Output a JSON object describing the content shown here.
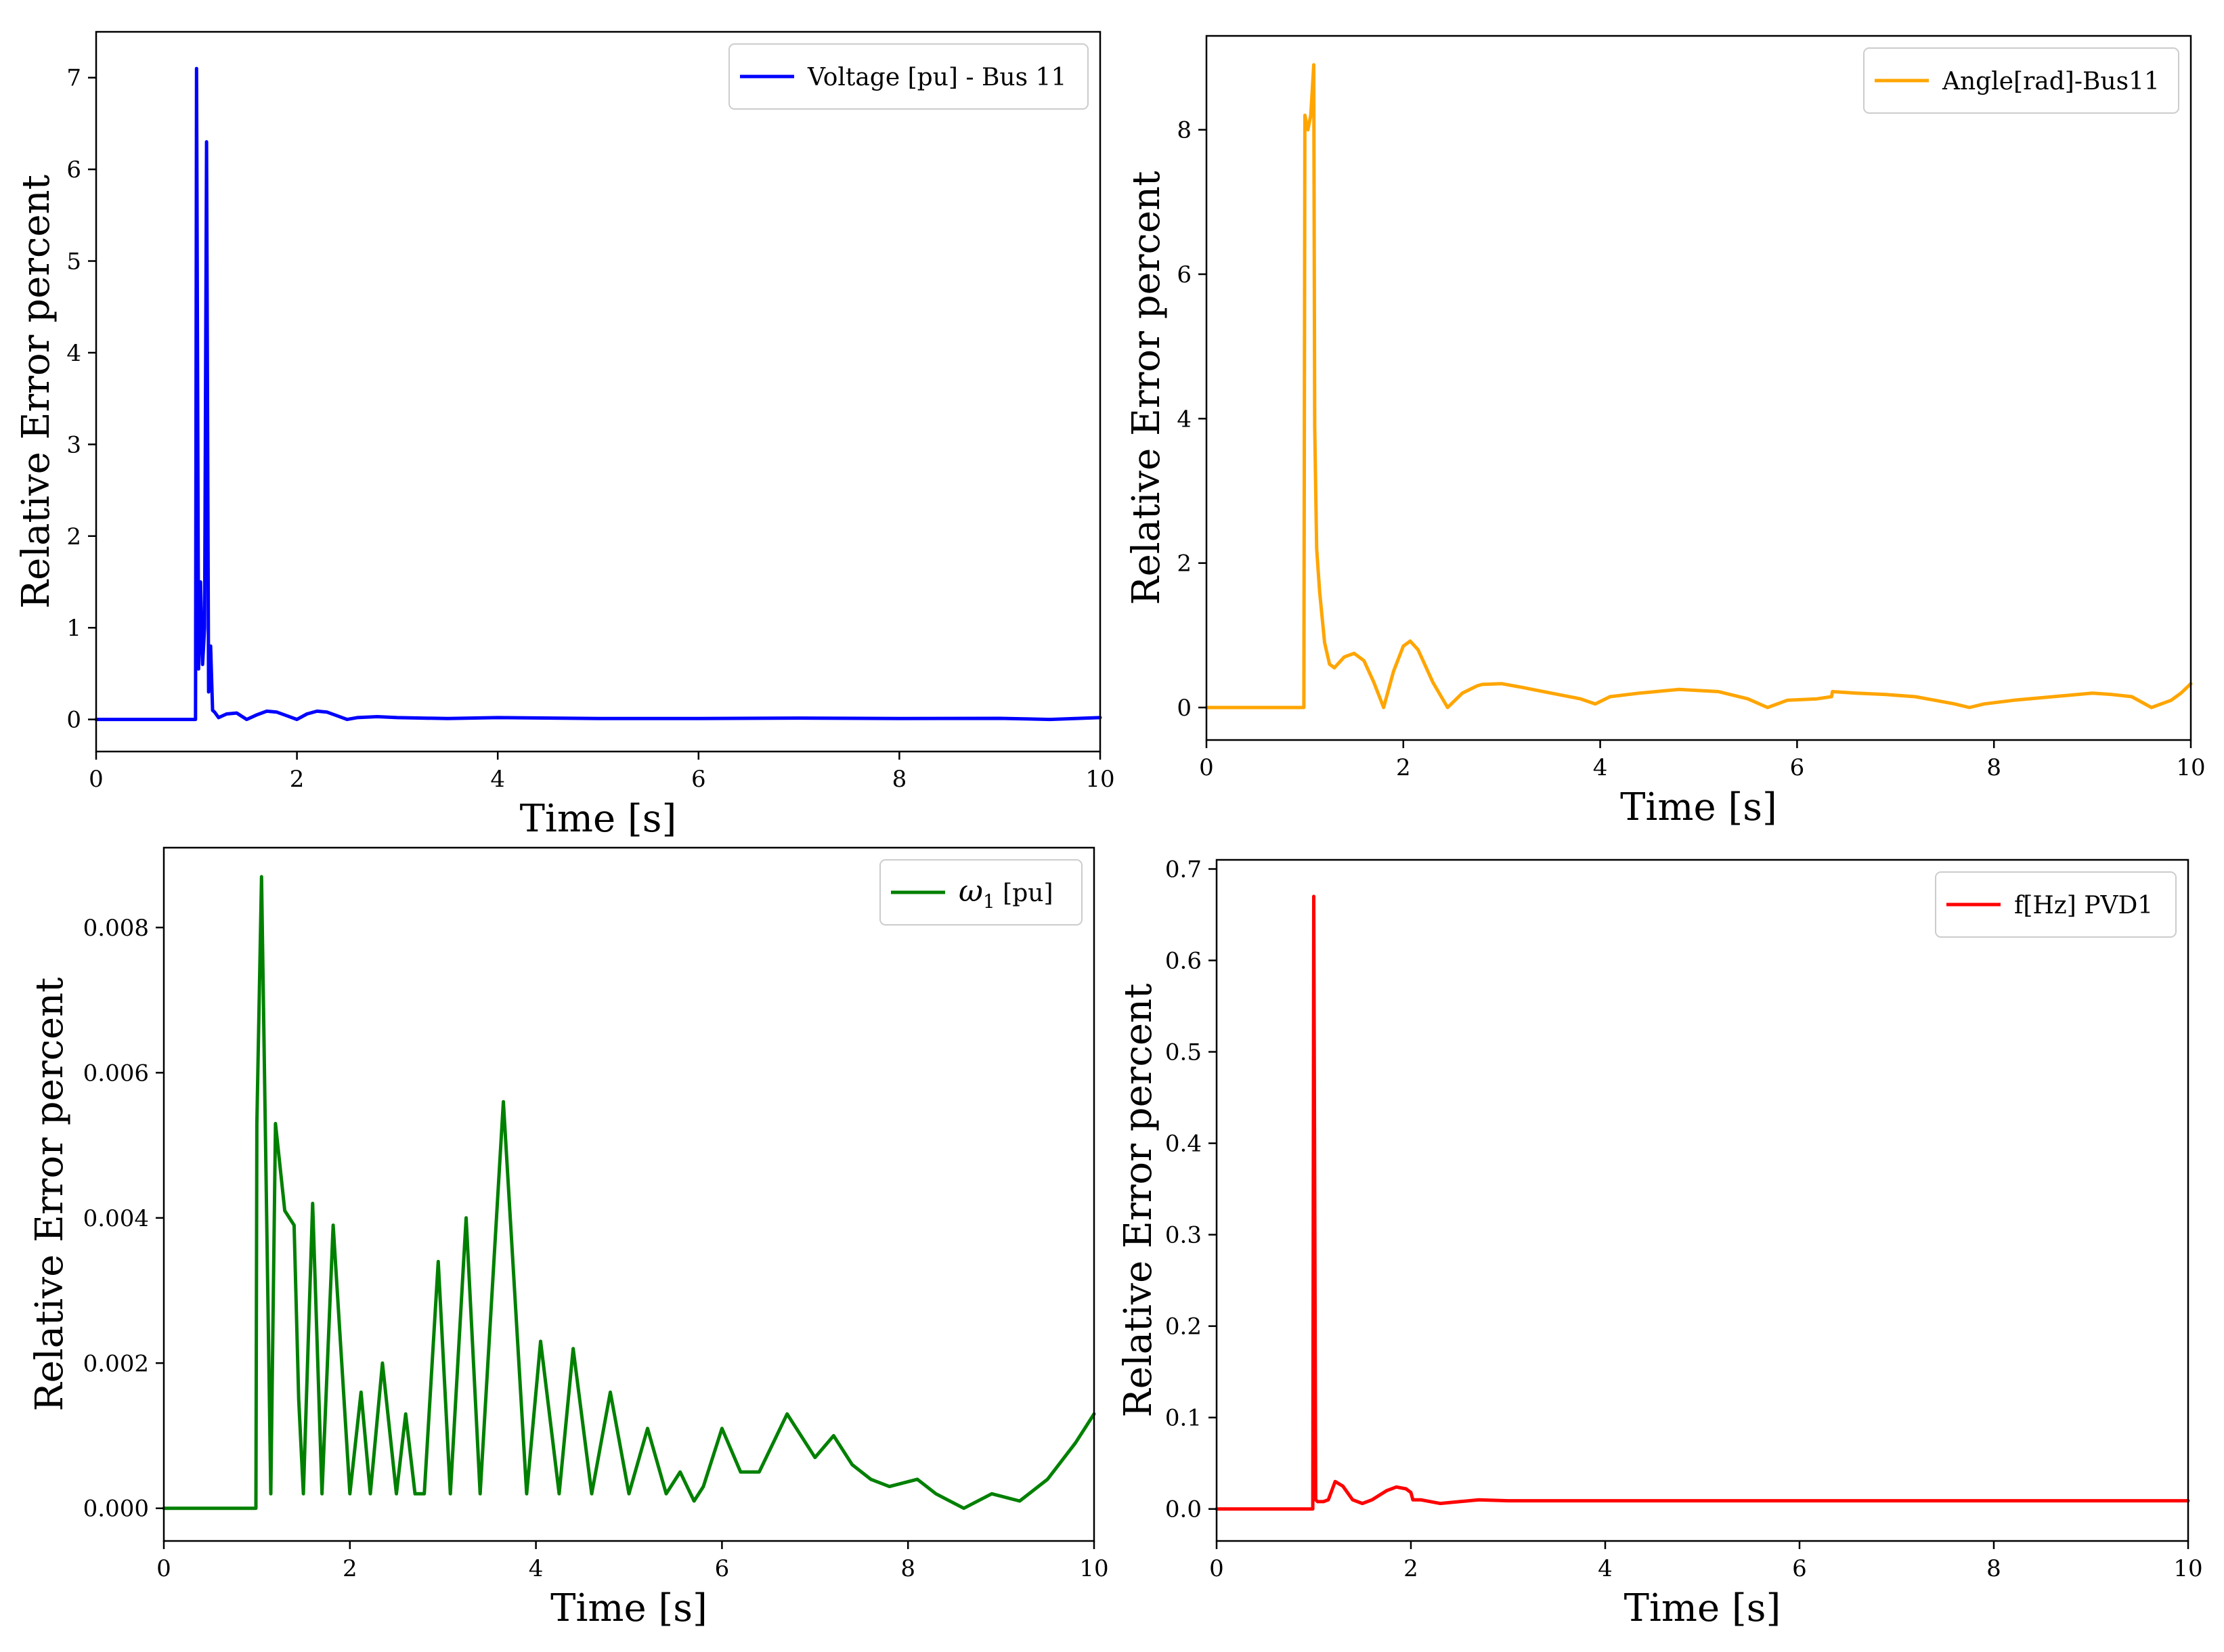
{
  "chart_data": [
    {
      "type": "line",
      "color": "#0000ff",
      "legend": "Voltage [pu] - Bus 11",
      "legend_position": "top-right",
      "xlabel": "Time [s]",
      "ylabel": "Relative Error percent",
      "xlim": [
        0,
        10
      ],
      "ylim": [
        -0.35,
        7.5
      ],
      "xticks": [
        0,
        2,
        4,
        6,
        8,
        10
      ],
      "xtick_labels": [
        "0",
        "2",
        "4",
        "6",
        "8",
        "10"
      ],
      "yticks": [
        0,
        1,
        2,
        3,
        4,
        5,
        6,
        7
      ],
      "ytick_labels": [
        "0",
        "1",
        "2",
        "3",
        "4",
        "5",
        "6",
        "7"
      ],
      "x": [
        0,
        0.99,
        1.0,
        1.02,
        1.04,
        1.06,
        1.08,
        1.1,
        1.12,
        1.14,
        1.16,
        1.18,
        1.22,
        1.3,
        1.4,
        1.5,
        1.6,
        1.7,
        1.8,
        1.9,
        2.0,
        2.1,
        2.2,
        2.3,
        2.4,
        2.5,
        2.6,
        2.8,
        3.0,
        3.5,
        4.0,
        5.0,
        6.0,
        7.0,
        8.0,
        9.0,
        9.5,
        10.0
      ],
      "y": [
        0,
        0,
        7.1,
        0.55,
        1.5,
        0.6,
        1.0,
        6.3,
        0.3,
        0.8,
        0.1,
        0.08,
        0.02,
        0.06,
        0.07,
        0.0,
        0.05,
        0.09,
        0.08,
        0.04,
        0.0,
        0.06,
        0.09,
        0.08,
        0.04,
        0.0,
        0.02,
        0.03,
        0.02,
        0.01,
        0.02,
        0.01,
        0.01,
        0.015,
        0.01,
        0.012,
        0.0,
        0.02
      ]
    },
    {
      "type": "line",
      "color": "#ffa500",
      "legend": "Angle[rad]-Bus11",
      "legend_position": "top-right",
      "xlabel": "Time [s]",
      "ylabel": "Relative Error percent",
      "xlim": [
        0,
        10
      ],
      "ylim": [
        -0.45,
        9.3
      ],
      "xticks": [
        0,
        2,
        4,
        6,
        8,
        10
      ],
      "xtick_labels": [
        "0",
        "2",
        "4",
        "6",
        "8",
        "10"
      ],
      "yticks": [
        0,
        2,
        4,
        6,
        8
      ],
      "ytick_labels": [
        "0",
        "2",
        "4",
        "6",
        "8"
      ],
      "x": [
        0,
        0.99,
        1.0,
        1.03,
        1.06,
        1.09,
        1.1,
        1.11,
        1.12,
        1.15,
        1.2,
        1.25,
        1.3,
        1.4,
        1.5,
        1.6,
        1.7,
        1.8,
        1.9,
        2.0,
        2.07,
        2.15,
        2.3,
        2.45,
        2.6,
        2.75,
        2.8,
        3.0,
        3.2,
        3.5,
        3.8,
        3.95,
        4.1,
        4.4,
        4.8,
        5.2,
        5.5,
        5.7,
        5.9,
        6.2,
        6.35,
        6.36,
        6.6,
        6.9,
        7.2,
        7.4,
        7.6,
        7.75,
        7.9,
        8.2,
        8.6,
        9.0,
        9.2,
        9.4,
        9.6,
        9.8,
        9.9,
        10.0
      ],
      "y": [
        0,
        0,
        8.2,
        8.0,
        8.2,
        8.9,
        3.9,
        3.0,
        2.2,
        1.6,
        0.9,
        0.6,
        0.55,
        0.7,
        0.75,
        0.65,
        0.35,
        0.0,
        0.5,
        0.85,
        0.92,
        0.8,
        0.35,
        0.0,
        0.2,
        0.3,
        0.32,
        0.33,
        0.28,
        0.2,
        0.12,
        0.05,
        0.15,
        0.2,
        0.25,
        0.22,
        0.12,
        0.0,
        0.1,
        0.12,
        0.15,
        0.22,
        0.2,
        0.18,
        0.15,
        0.1,
        0.05,
        0.0,
        0.05,
        0.1,
        0.15,
        0.2,
        0.18,
        0.15,
        0.0,
        0.1,
        0.2,
        0.33
      ]
    },
    {
      "type": "line",
      "color": "#008000",
      "legend": "ω",
      "legend_subscript": "1",
      "legend_suffix": " [pu]",
      "legend_position": "top-right",
      "xlabel": "Time [s]",
      "ylabel": "Relative Error percent",
      "xlim": [
        0,
        10
      ],
      "ylim": [
        -0.00045,
        0.0091
      ],
      "xticks": [
        0,
        2,
        4,
        6,
        8,
        10
      ],
      "xtick_labels": [
        "0",
        "2",
        "4",
        "6",
        "8",
        "10"
      ],
      "yticks": [
        0.0,
        0.002,
        0.004,
        0.006,
        0.008
      ],
      "ytick_labels": [
        "0.000",
        "0.002",
        "0.004",
        "0.006",
        "0.008"
      ],
      "x": [
        0,
        0.99,
        1.0,
        1.05,
        1.1,
        1.15,
        1.2,
        1.3,
        1.4,
        1.45,
        1.5,
        1.6,
        1.7,
        1.82,
        2.0,
        2.12,
        2.22,
        2.35,
        2.5,
        2.6,
        2.7,
        2.8,
        2.95,
        3.08,
        3.25,
        3.4,
        3.65,
        3.9,
        4.05,
        4.25,
        4.4,
        4.6,
        4.8,
        5.0,
        5.2,
        5.4,
        5.55,
        5.7,
        5.8,
        6.0,
        6.2,
        6.4,
        6.7,
        7.0,
        7.2,
        7.4,
        7.6,
        7.8,
        8.1,
        8.3,
        8.6,
        8.9,
        9.2,
        9.5,
        9.8,
        10.0
      ],
      "y": [
        0,
        0,
        0.0053,
        0.0087,
        0.0045,
        0.0002,
        0.0053,
        0.0041,
        0.0039,
        0.0015,
        0.0002,
        0.0042,
        0.0002,
        0.0039,
        0.0002,
        0.0016,
        0.0002,
        0.002,
        0.0002,
        0.0013,
        0.0002,
        0.0002,
        0.0034,
        0.0002,
        0.004,
        0.0002,
        0.0056,
        0.0002,
        0.0023,
        0.0002,
        0.0022,
        0.0002,
        0.0016,
        0.0002,
        0.0011,
        0.0002,
        0.0005,
        0.0001,
        0.0003,
        0.0011,
        0.0005,
        0.0005,
        0.0013,
        0.0007,
        0.001,
        0.0006,
        0.0004,
        0.0003,
        0.0004,
        0.0002,
        0.0,
        0.0002,
        0.0001,
        0.0004,
        0.0009,
        0.0013
      ]
    },
    {
      "type": "line",
      "color": "#ff0000",
      "legend": "f[Hz] PVD1",
      "legend_position": "top-right",
      "xlabel": "Time [s]",
      "ylabel": "Relative Error percent",
      "xlim": [
        0,
        10
      ],
      "ylim": [
        -0.035,
        0.71
      ],
      "xticks": [
        0,
        2,
        4,
        6,
        8,
        10
      ],
      "xtick_labels": [
        "0",
        "2",
        "4",
        "6",
        "8",
        "10"
      ],
      "yticks": [
        0.0,
        0.1,
        0.2,
        0.3,
        0.4,
        0.5,
        0.6,
        0.7
      ],
      "ytick_labels": [
        "0.0",
        "0.1",
        "0.2",
        "0.3",
        "0.4",
        "0.5",
        "0.6",
        "0.7"
      ],
      "x": [
        0,
        0.99,
        1.0,
        1.02,
        1.04,
        1.1,
        1.15,
        1.22,
        1.3,
        1.4,
        1.5,
        1.6,
        1.75,
        1.85,
        1.95,
        2.0,
        2.02,
        2.1,
        2.3,
        2.5,
        2.7,
        3.0,
        4.0,
        5.0,
        7.0,
        10.0
      ],
      "y": [
        0,
        0,
        0.67,
        0.01,
        0.008,
        0.008,
        0.01,
        0.03,
        0.025,
        0.01,
        0.006,
        0.01,
        0.02,
        0.024,
        0.022,
        0.018,
        0.01,
        0.01,
        0.006,
        0.008,
        0.01,
        0.009,
        0.009,
        0.009,
        0.009,
        0.009
      ]
    }
  ]
}
